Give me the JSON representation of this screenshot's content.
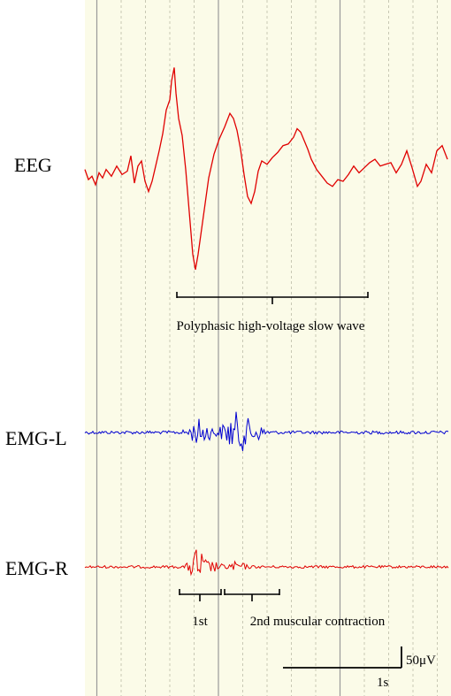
{
  "chart_data": {
    "type": "line",
    "channels": [
      {
        "name": "EEG",
        "color": "#e00000"
      },
      {
        "name": "EMG-L",
        "color": "#0000d0"
      },
      {
        "name": "EMG-R",
        "color": "#e00000"
      }
    ],
    "grid": {
      "major_divisions_per_s": 2,
      "minor_divisions_per_major": 5
    },
    "annotations": {
      "eeg_bracket": "Polyphasic high-voltage slow wave",
      "first": "1st",
      "second": "2nd muscular contraction"
    },
    "scale_bar": {
      "time_label": "1s",
      "amplitude_label": "50μV"
    },
    "colors": {
      "background": "#fbfbe8",
      "grid_major": "#9a9a9a",
      "grid_minor": "#c8c8b4"
    },
    "eeg_trace": [
      [
        0,
        -10
      ],
      [
        4,
        -22
      ],
      [
        8,
        -18
      ],
      [
        12,
        -28
      ],
      [
        16,
        -14
      ],
      [
        20,
        -20
      ],
      [
        24,
        -10
      ],
      [
        30,
        -18
      ],
      [
        36,
        -6
      ],
      [
        42,
        -16
      ],
      [
        48,
        -12
      ],
      [
        52,
        6
      ],
      [
        56,
        -26
      ],
      [
        60,
        -6
      ],
      [
        64,
        0
      ],
      [
        68,
        -24
      ],
      [
        72,
        -36
      ],
      [
        76,
        -24
      ],
      [
        80,
        -6
      ],
      [
        84,
        12
      ],
      [
        88,
        32
      ],
      [
        92,
        60
      ],
      [
        96,
        72
      ],
      [
        98,
        94
      ],
      [
        101,
        110
      ],
      [
        103,
        80
      ],
      [
        106,
        50
      ],
      [
        110,
        30
      ],
      [
        114,
        -10
      ],
      [
        118,
        -60
      ],
      [
        122,
        -110
      ],
      [
        125,
        -128
      ],
      [
        128,
        -110
      ],
      [
        132,
        -80
      ],
      [
        136,
        -50
      ],
      [
        140,
        -20
      ],
      [
        146,
        8
      ],
      [
        152,
        26
      ],
      [
        158,
        40
      ],
      [
        164,
        56
      ],
      [
        168,
        50
      ],
      [
        172,
        36
      ],
      [
        176,
        14
      ],
      [
        180,
        -16
      ],
      [
        184,
        -42
      ],
      [
        188,
        -50
      ],
      [
        192,
        -36
      ],
      [
        196,
        -12
      ],
      [
        200,
        0
      ],
      [
        206,
        -4
      ],
      [
        212,
        4
      ],
      [
        218,
        10
      ],
      [
        224,
        18
      ],
      [
        230,
        20
      ],
      [
        236,
        28
      ],
      [
        240,
        38
      ],
      [
        244,
        34
      ],
      [
        248,
        24
      ],
      [
        252,
        14
      ],
      [
        256,
        2
      ],
      [
        262,
        -10
      ],
      [
        268,
        -18
      ],
      [
        274,
        -26
      ],
      [
        280,
        -30
      ],
      [
        286,
        -22
      ],
      [
        292,
        -24
      ],
      [
        298,
        -16
      ],
      [
        304,
        -6
      ],
      [
        310,
        -14
      ],
      [
        316,
        -8
      ],
      [
        322,
        -2
      ],
      [
        328,
        2
      ],
      [
        334,
        -6
      ],
      [
        340,
        -4
      ],
      [
        346,
        -2
      ],
      [
        352,
        -14
      ],
      [
        358,
        -4
      ],
      [
        364,
        12
      ],
      [
        370,
        -8
      ],
      [
        376,
        -30
      ],
      [
        380,
        -24
      ],
      [
        386,
        -4
      ],
      [
        392,
        -14
      ],
      [
        398,
        12
      ],
      [
        404,
        18
      ],
      [
        410,
        2
      ]
    ]
  }
}
